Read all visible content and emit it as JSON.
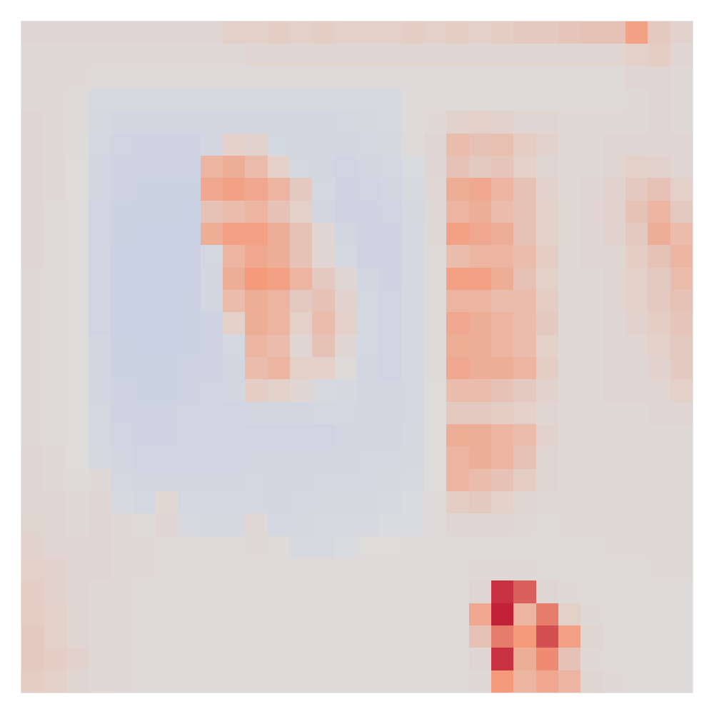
{
  "chart_data": {
    "type": "heatmap",
    "tick_labels": false,
    "xlim": [
      -0.5,
      29.5
    ],
    "ylim": [
      29.5,
      -0.5
    ],
    "zlim": [
      -1,
      1
    ],
    "cells": [
      [
        0.05,
        0.05,
        0.05,
        0.05,
        0.05,
        0.05,
        0.05,
        0.05,
        0.05,
        0.1,
        0.1,
        0.12,
        0.1,
        0.12,
        0.1,
        0.1,
        0.1,
        0.12,
        0.1,
        0.12,
        0.1,
        0.12,
        0.15,
        0.15,
        0.18,
        0.2,
        0.2,
        0.45,
        0.15,
        0.08
      ],
      [
        0.04,
        0.04,
        0.04,
        0.04,
        0.04,
        0.04,
        0.04,
        0.04,
        0.04,
        0.04,
        0.06,
        0.06,
        0.06,
        0.06,
        0.06,
        0.06,
        0.06,
        0.06,
        0.06,
        0.06,
        0.06,
        0.06,
        0.06,
        0.06,
        0.06,
        0.06,
        0.06,
        0.1,
        0.12,
        0.05
      ],
      [
        0.04,
        0.04,
        0.03,
        0.02,
        0.02,
        0.02,
        0.02,
        0.02,
        0.02,
        0.02,
        0.02,
        0.02,
        0.02,
        0.02,
        0.02,
        0.02,
        0.02,
        0.02,
        0.02,
        0.02,
        0.02,
        0.02,
        0.02,
        0.02,
        0.02,
        0.02,
        0.02,
        0.05,
        0.06,
        0.04
      ],
      [
        0.04,
        0.03,
        0.02,
        -0.03,
        -0.03,
        -0.03,
        -0.03,
        -0.03,
        -0.03,
        -0.03,
        -0.03,
        -0.03,
        -0.03,
        -0.03,
        -0.03,
        -0.03,
        -0.03,
        0.02,
        0.02,
        0.02,
        0.02,
        0.02,
        0.02,
        0.02,
        0.02,
        0.02,
        0.02,
        0.03,
        0.05,
        0.04
      ],
      [
        0.05,
        0.03,
        0.02,
        -0.04,
        -0.06,
        -0.06,
        -0.06,
        -0.06,
        -0.06,
        -0.06,
        -0.06,
        -0.06,
        -0.06,
        -0.06,
        -0.05,
        -0.04,
        -0.03,
        0.02,
        0.04,
        0.08,
        0.1,
        0.08,
        0.06,
        0.06,
        0.03,
        0.03,
        0.04,
        0.04,
        0.05,
        0.04
      ],
      [
        0.05,
        0.03,
        0.02,
        -0.05,
        -0.07,
        -0.08,
        -0.08,
        -0.08,
        -0.06,
        0.1,
        0.08,
        -0.05,
        -0.06,
        -0.06,
        -0.06,
        -0.05,
        -0.04,
        0.02,
        0.05,
        0.25,
        0.2,
        0.22,
        0.12,
        0.08,
        0.04,
        0.04,
        0.05,
        0.06,
        0.06,
        0.05
      ],
      [
        0.06,
        0.03,
        0.01,
        -0.06,
        -0.08,
        -0.08,
        -0.08,
        -0.08,
        0.3,
        0.35,
        0.25,
        0.1,
        -0.05,
        -0.06,
        -0.07,
        -0.06,
        -0.05,
        -0.02,
        0.05,
        0.2,
        0.15,
        0.18,
        0.1,
        0.05,
        0.03,
        0.04,
        0.06,
        0.1,
        0.08,
        0.05
      ],
      [
        0.05,
        0.03,
        0.01,
        -0.06,
        -0.08,
        -0.09,
        -0.09,
        -0.09,
        0.4,
        0.45,
        0.4,
        0.3,
        0.15,
        -0.05,
        -0.08,
        -0.07,
        -0.06,
        -0.03,
        0.04,
        0.35,
        0.4,
        0.3,
        0.2,
        0.08,
        0.04,
        0.05,
        0.08,
        0.15,
        0.2,
        0.1
      ],
      [
        0.05,
        0.02,
        0.01,
        -0.07,
        -0.09,
        -0.09,
        -0.09,
        -0.1,
        0.2,
        0.25,
        0.3,
        0.2,
        0.1,
        -0.06,
        -0.08,
        -0.08,
        -0.07,
        -0.04,
        0.03,
        0.3,
        0.35,
        0.25,
        0.2,
        0.1,
        0.04,
        0.06,
        0.08,
        0.2,
        0.3,
        0.15
      ],
      [
        0.05,
        0.02,
        0.01,
        -0.07,
        -0.09,
        -0.1,
        -0.1,
        -0.1,
        0.35,
        0.45,
        0.45,
        0.35,
        0.2,
        0.05,
        -0.06,
        -0.08,
        -0.08,
        -0.05,
        0.03,
        0.45,
        0.4,
        0.35,
        0.2,
        0.1,
        0.04,
        0.05,
        0.08,
        0.15,
        0.35,
        0.25
      ],
      [
        0.05,
        0.02,
        0.01,
        -0.07,
        -0.1,
        -0.1,
        -0.1,
        -0.1,
        -0.05,
        0.3,
        0.4,
        0.35,
        0.2,
        0.05,
        -0.05,
        -0.08,
        -0.08,
        -0.05,
        0.02,
        0.25,
        0.3,
        0.3,
        0.25,
        0.12,
        0.03,
        0.05,
        0.06,
        0.12,
        0.2,
        0.3
      ],
      [
        0.04,
        0.02,
        0.01,
        -0.07,
        -0.1,
        -0.1,
        -0.1,
        -0.1,
        -0.06,
        0.35,
        0.5,
        0.45,
        0.3,
        0.15,
        0.05,
        -0.06,
        -0.08,
        -0.05,
        0.02,
        0.45,
        0.45,
        0.35,
        0.2,
        0.1,
        0.03,
        0.04,
        0.06,
        0.1,
        0.15,
        0.25
      ],
      [
        0.04,
        0.02,
        0.01,
        -0.07,
        -0.1,
        -0.1,
        -0.1,
        -0.09,
        -0.06,
        0.25,
        0.35,
        0.3,
        0.15,
        0.2,
        0.08,
        -0.05,
        -0.07,
        -0.05,
        0.02,
        0.3,
        0.3,
        0.25,
        0.25,
        0.12,
        0.03,
        0.04,
        0.06,
        0.1,
        0.15,
        0.2
      ],
      [
        0.04,
        0.02,
        0.01,
        -0.07,
        -0.1,
        -0.1,
        -0.1,
        -0.09,
        -0.08,
        0.1,
        0.35,
        0.3,
        0.1,
        0.25,
        0.1,
        -0.05,
        -0.07,
        -0.05,
        0.02,
        0.4,
        0.35,
        0.3,
        0.25,
        0.15,
        0.03,
        0.04,
        0.05,
        0.08,
        0.12,
        0.18
      ],
      [
        0.04,
        0.02,
        0.01,
        -0.06,
        -0.09,
        -0.1,
        -0.1,
        -0.09,
        -0.08,
        -0.05,
        0.3,
        0.25,
        0.05,
        0.2,
        0.05,
        -0.05,
        -0.07,
        -0.05,
        0.02,
        0.35,
        0.35,
        0.3,
        0.25,
        0.1,
        0.03,
        0.04,
        0.05,
        0.06,
        0.1,
        0.15
      ],
      [
        0.04,
        0.02,
        0.01,
        -0.06,
        -0.09,
        -0.09,
        -0.09,
        -0.08,
        -0.08,
        -0.06,
        0.25,
        0.3,
        0.1,
        0.1,
        0.02,
        -0.06,
        -0.07,
        -0.05,
        0.02,
        0.4,
        0.35,
        0.35,
        0.3,
        0.12,
        0.03,
        0.04,
        0.05,
        0.05,
        0.08,
        0.15
      ],
      [
        0.04,
        0.02,
        0.01,
        -0.06,
        -0.08,
        -0.09,
        -0.09,
        -0.08,
        -0.07,
        -0.06,
        0.12,
        0.1,
        0.05,
        -0.03,
        -0.04,
        -0.06,
        -0.06,
        -0.05,
        0.01,
        0.25,
        0.25,
        0.2,
        0.15,
        0.08,
        0.03,
        0.04,
        0.05,
        0.05,
        0.06,
        0.1
      ],
      [
        0.04,
        0.02,
        0.01,
        -0.05,
        -0.08,
        -0.08,
        -0.08,
        -0.07,
        -0.07,
        -0.07,
        -0.06,
        -0.06,
        -0.06,
        -0.05,
        -0.05,
        -0.06,
        -0.06,
        -0.05,
        0.01,
        0.15,
        0.15,
        0.12,
        0.1,
        0.06,
        0.03,
        0.04,
        0.04,
        0.04,
        0.05,
        0.05
      ],
      [
        0.04,
        0.02,
        0.01,
        -0.05,
        -0.07,
        -0.08,
        -0.08,
        -0.07,
        -0.07,
        -0.07,
        -0.07,
        -0.07,
        -0.07,
        -0.07,
        -0.06,
        -0.06,
        -0.06,
        -0.04,
        0.01,
        0.35,
        0.35,
        0.3,
        0.25,
        0.08,
        0.03,
        0.03,
        0.04,
        0.04,
        0.04,
        0.04
      ],
      [
        0.05,
        0.03,
        0.01,
        -0.04,
        -0.06,
        -0.07,
        -0.07,
        -0.07,
        -0.07,
        -0.07,
        -0.06,
        -0.06,
        -0.06,
        -0.06,
        -0.06,
        -0.05,
        -0.05,
        -0.04,
        0.01,
        0.3,
        0.35,
        0.3,
        0.2,
        0.06,
        0.03,
        0.03,
        0.04,
        0.03,
        0.04,
        0.04
      ],
      [
        0.06,
        0.04,
        0.02,
        0.03,
        -0.05,
        -0.06,
        -0.06,
        -0.06,
        -0.06,
        -0.06,
        -0.05,
        -0.06,
        -0.06,
        -0.05,
        -0.05,
        -0.05,
        -0.04,
        -0.03,
        0.01,
        0.3,
        0.25,
        0.2,
        0.12,
        0.05,
        0.03,
        0.03,
        0.04,
        0.03,
        0.03,
        0.04
      ],
      [
        0.06,
        0.05,
        0.03,
        0.05,
        -0.03,
        -0.05,
        0.04,
        -0.05,
        -0.05,
        -0.05,
        -0.05,
        -0.06,
        -0.05,
        -0.04,
        -0.04,
        -0.04,
        -0.03,
        -0.02,
        0.02,
        0.12,
        0.15,
        0.1,
        0.06,
        0.03,
        0.03,
        0.03,
        0.04,
        0.03,
        0.03,
        0.04
      ],
      [
        0.07,
        0.05,
        0.04,
        0.05,
        0.03,
        0.02,
        0.05,
        -0.03,
        -0.04,
        -0.04,
        0.04,
        -0.05,
        -0.04,
        -0.03,
        -0.03,
        -0.03,
        -0.02,
        -0.02,
        0.02,
        0.05,
        0.06,
        0.05,
        0.03,
        0.02,
        0.03,
        0.03,
        0.04,
        0.03,
        0.03,
        0.04
      ],
      [
        0.08,
        0.06,
        0.05,
        0.06,
        0.04,
        0.03,
        0.02,
        0.02,
        0.02,
        0.02,
        0.03,
        0.02,
        -0.03,
        -0.03,
        -0.02,
        0.01,
        0.01,
        0.02,
        0.02,
        0.02,
        0.02,
        0.02,
        0.02,
        0.02,
        0.02,
        0.02,
        0.03,
        0.03,
        0.03,
        0.04
      ],
      [
        0.1,
        0.08,
        0.06,
        0.05,
        0.04,
        0.03,
        0.02,
        0.02,
        0.02,
        0.02,
        0.02,
        0.02,
        0.02,
        0.02,
        0.02,
        0.02,
        0.02,
        0.02,
        0.02,
        0.02,
        0.04,
        0.03,
        0.03,
        0.02,
        0.02,
        0.02,
        0.02,
        0.02,
        0.03,
        0.03
      ],
      [
        0.12,
        0.08,
        0.06,
        0.04,
        0.03,
        0.02,
        0.02,
        0.02,
        0.02,
        0.02,
        0.02,
        0.02,
        0.02,
        0.02,
        0.02,
        0.02,
        0.02,
        0.02,
        0.02,
        0.02,
        0.05,
        0.85,
        0.7,
        0.05,
        0.03,
        0.02,
        0.02,
        0.02,
        0.02,
        0.02
      ],
      [
        0.12,
        0.1,
        0.06,
        0.04,
        0.03,
        0.02,
        0.02,
        0.02,
        0.02,
        0.02,
        0.02,
        0.02,
        0.02,
        0.02,
        0.02,
        0.02,
        0.02,
        0.02,
        0.02,
        0.02,
        0.4,
        0.9,
        0.3,
        0.6,
        0.1,
        0.03,
        0.02,
        0.02,
        0.02,
        0.02
      ],
      [
        0.15,
        0.1,
        0.06,
        0.04,
        0.03,
        0.02,
        0.02,
        0.02,
        0.02,
        0.02,
        0.02,
        0.02,
        0.02,
        0.02,
        0.02,
        0.02,
        0.02,
        0.02,
        0.02,
        0.02,
        0.2,
        0.6,
        0.5,
        0.75,
        0.45,
        0.06,
        0.02,
        0.02,
        0.02,
        0.02
      ],
      [
        0.15,
        0.12,
        0.08,
        0.04,
        0.03,
        0.02,
        0.02,
        0.02,
        0.02,
        0.02,
        0.02,
        0.02,
        0.02,
        0.02,
        0.02,
        0.02,
        0.02,
        0.02,
        0.02,
        0.02,
        0.05,
        0.85,
        0.35,
        0.55,
        0.2,
        0.04,
        0.02,
        0.02,
        0.02,
        0.02
      ],
      [
        0.12,
        0.1,
        0.06,
        0.04,
        0.03,
        0.02,
        0.02,
        0.02,
        0.02,
        0.02,
        0.02,
        0.02,
        0.02,
        0.02,
        0.02,
        0.02,
        0.02,
        0.02,
        0.02,
        0.02,
        0.03,
        0.5,
        0.3,
        0.4,
        0.3,
        0.06,
        0.03,
        0.02,
        0.02,
        0.02
      ]
    ]
  }
}
